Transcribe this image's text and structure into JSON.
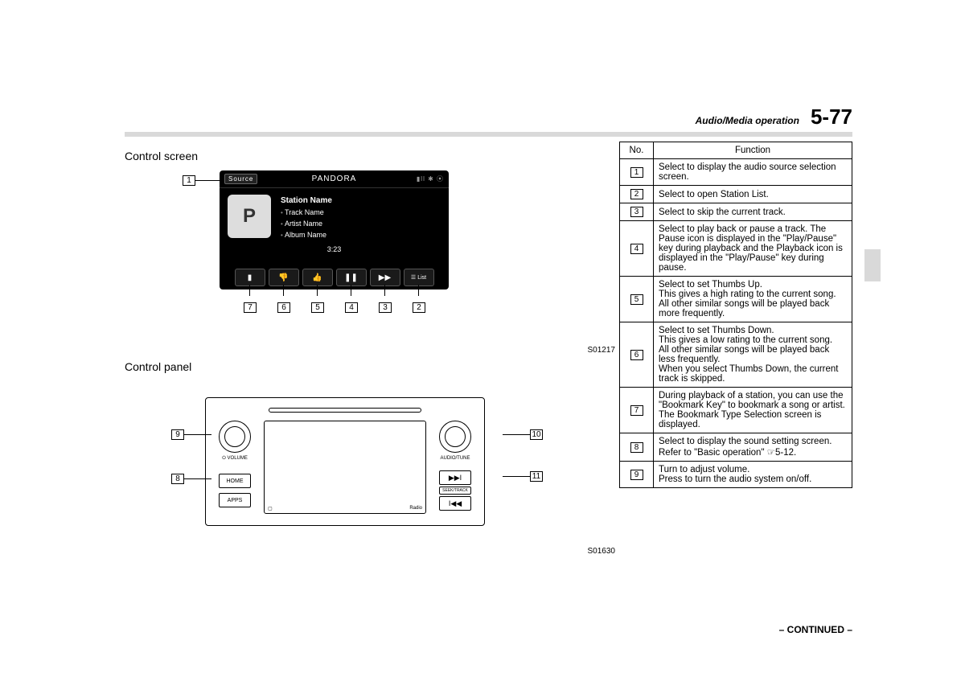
{
  "header": {
    "section": "Audio/Media operation",
    "page": "5-77"
  },
  "left": {
    "controlScreenTitle": "Control screen",
    "controlPanelTitle": "Control panel",
    "fig1": "S01217",
    "fig2": "S01630"
  },
  "screen": {
    "source": "Source",
    "title": "PANDORA",
    "station": "Station Name",
    "track": "Track Name",
    "artist": "Artist Name",
    "album": "Album Name",
    "time": "3:23",
    "list": "List"
  },
  "panel": {
    "volLabel": "VOLUME",
    "tuneLabel": "AUDIO/TUNE",
    "home": "HOME",
    "apps": "APPS",
    "seek": "SEEK/TRACK",
    "radio": "Radio"
  },
  "callouts": {
    "n1": "1",
    "n2": "2",
    "n3": "3",
    "n4": "4",
    "n5": "5",
    "n6": "6",
    "n7": "7",
    "n8": "8",
    "n9": "9",
    "n10": "10",
    "n11": "11"
  },
  "table": {
    "hNo": "No.",
    "hFn": "Function",
    "rows": [
      {
        "n": "1",
        "f": "Select to display the audio source selection screen."
      },
      {
        "n": "2",
        "f": "Select to open Station List."
      },
      {
        "n": "3",
        "f": "Select to skip the current track."
      },
      {
        "n": "4",
        "f": "Select to play back or pause a track. The Pause icon is displayed in the \"Play/Pause\" key during playback and the Playback icon is displayed in the \"Play/Pause\" key during pause."
      },
      {
        "n": "5",
        "f": "Select to set Thumbs Up.\nThis gives a high rating to the current song.\nAll other similar songs will be played back more frequently."
      },
      {
        "n": "6",
        "f": "Select to set Thumbs Down.\nThis gives a low rating to the current song.\nAll other similar songs will be played back less frequently.\nWhen you select Thumbs Down, the current track is skipped."
      },
      {
        "n": "7",
        "f": "During playback of a station, you can use the \"Bookmark Key\" to bookmark a song or artist.\nThe Bookmark Type Selection screen is displayed."
      },
      {
        "n": "8",
        "f": "Select to display the sound setting screen. Refer to \"Basic operation\" ☞5-12."
      },
      {
        "n": "9",
        "f": "Turn to adjust volume.\nPress to turn the audio system on/off."
      }
    ]
  },
  "continued": "– CONTINUED –"
}
